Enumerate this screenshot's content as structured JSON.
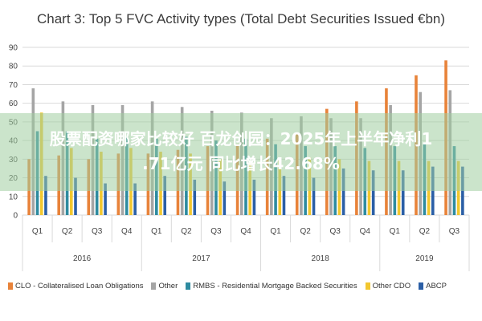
{
  "chart_data": {
    "type": "bar",
    "title": "Chart 3: Top 5 FVC Activity types (Total Debt Securities Issued €bn)",
    "ylim": [
      0,
      90
    ],
    "yticks": [
      0,
      10,
      20,
      30,
      40,
      50,
      60,
      70,
      80,
      90
    ],
    "grid": true,
    "legend_position": "bottom",
    "categories": [
      "Q1",
      "Q2",
      "Q3",
      "Q4",
      "Q1",
      "Q2",
      "Q3",
      "Q4",
      "Q1",
      "Q2",
      "Q3",
      "Q4",
      "Q1",
      "Q2",
      "Q3"
    ],
    "year_groups": [
      {
        "label": "2016",
        "count": 4
      },
      {
        "label": "2017",
        "count": 4
      },
      {
        "label": "2018",
        "count": 4
      },
      {
        "label": "2019",
        "count": 3
      }
    ],
    "series": [
      {
        "name": "CLO - Collateralised Loan Obligations",
        "color": "#e8833a",
        "values": [
          30,
          32,
          30,
          33,
          33,
          35,
          37,
          38,
          41,
          44,
          57,
          61,
          68,
          75,
          83
        ]
      },
      {
        "name": "Other",
        "color": "#a5a5a5",
        "values": [
          68,
          61,
          59,
          59,
          61,
          58,
          56,
          55,
          52,
          53,
          52,
          52,
          59,
          66,
          67
        ]
      },
      {
        "name": "RMBS - Residential Mortgage Backed Securities",
        "color": "#2e8ba0",
        "values": [
          45,
          45,
          41,
          42,
          41,
          42,
          40,
          41,
          38,
          37,
          37,
          36,
          37,
          38,
          37
        ]
      },
      {
        "name": "Other CDO",
        "color": "#f2c72f",
        "values": [
          55,
          36,
          34,
          36,
          34,
          33,
          30,
          28,
          31,
          31,
          30,
          29,
          29,
          29,
          29
        ]
      },
      {
        "name": "ABCP",
        "color": "#2b5fa6",
        "values": [
          21,
          20,
          17,
          17,
          21,
          19,
          18,
          19,
          21,
          20,
          25,
          24,
          24,
          26,
          26
        ]
      }
    ]
  },
  "overlay": {
    "line1": "股票配资哪家比较好 百龙创园：2025年上半年净利1",
    "line2": ".71亿元 同比增长42.68%"
  }
}
